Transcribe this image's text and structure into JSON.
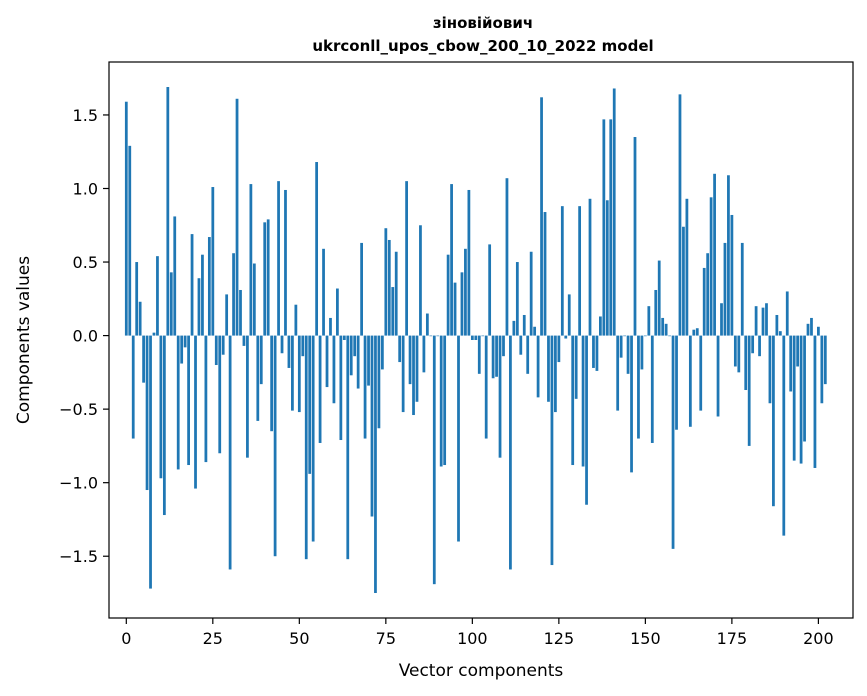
{
  "chart_data": {
    "type": "bar",
    "title_line1": "зіновійович",
    "title_line2": "ukrconll_upos_cbow_200_10_2022 model",
    "xlabel": "Vector components",
    "ylabel": "Components values",
    "xlim": [
      -5,
      210
    ],
    "ylim": [
      -1.92,
      1.86
    ],
    "x_ticks": [
      0,
      25,
      50,
      75,
      100,
      125,
      150,
      175,
      200
    ],
    "x_tick_labels": [
      "0",
      "25",
      "50",
      "75",
      "100",
      "125",
      "150",
      "175",
      "200"
    ],
    "y_ticks": [
      1.5,
      1.0,
      0.5,
      0.0,
      -0.5,
      -1.0,
      -1.5
    ],
    "y_tick_labels": [
      "1.5",
      "1.0",
      "0.5",
      "0.0",
      "−0.5",
      "−1.0",
      "−1.5"
    ],
    "bar_color": "#1f77b4",
    "grid": false,
    "values": [
      1.59,
      1.29,
      -0.7,
      0.5,
      0.23,
      -0.32,
      -1.05,
      -1.72,
      0.02,
      0.54,
      -0.97,
      -1.22,
      1.69,
      0.43,
      0.81,
      -0.91,
      -0.19,
      -0.08,
      -0.88,
      0.69,
      -1.04,
      0.39,
      0.55,
      -0.86,
      0.67,
      1.01,
      -0.2,
      -0.8,
      -0.13,
      0.28,
      -1.59,
      0.56,
      1.61,
      0.31,
      -0.07,
      -0.83,
      1.03,
      0.49,
      -0.58,
      -0.33,
      0.77,
      0.79,
      -0.65,
      -1.5,
      1.05,
      -0.12,
      0.99,
      -0.22,
      -0.51,
      0.21,
      -0.52,
      -0.14,
      -1.52,
      -0.94,
      -1.4,
      1.18,
      -0.73,
      0.59,
      -0.35,
      0.12,
      -0.46,
      0.32,
      -0.71,
      -0.03,
      -1.52,
      -0.27,
      -0.14,
      -0.36,
      0.63,
      -0.7,
      -0.34,
      -1.23,
      -1.75,
      -0.63,
      -0.23,
      0.73,
      0.65,
      0.33,
      0.57,
      -0.18,
      -0.52,
      1.05,
      -0.33,
      -0.54,
      -0.45,
      0.75,
      -0.25,
      0.15,
      0.0,
      -1.69,
      0.0,
      -0.89,
      -0.88,
      0.55,
      1.03,
      0.36,
      -1.4,
      0.43,
      0.59,
      0.99,
      -0.03,
      -0.03,
      -0.26,
      0.0,
      -0.7,
      0.62,
      -0.29,
      -0.28,
      -0.83,
      -0.14,
      1.07,
      -1.59,
      0.1,
      0.5,
      -0.13,
      0.14,
      -0.26,
      0.57,
      0.06,
      -0.42,
      1.62,
      0.84,
      -0.45,
      -1.56,
      -0.52,
      -0.18,
      0.88,
      -0.02,
      0.28,
      -0.88,
      -0.43,
      0.88,
      -0.89,
      -1.15,
      0.93,
      -0.22,
      -0.24,
      0.13,
      1.47,
      0.92,
      1.47,
      1.68,
      -0.51,
      -0.15,
      0.0,
      -0.26,
      -0.93,
      1.35,
      -0.7,
      -0.23,
      0.0,
      0.2,
      -0.73,
      0.31,
      0.51,
      0.12,
      0.08,
      0.0,
      -1.45,
      -0.64,
      1.64,
      0.74,
      0.93,
      -0.62,
      0.04,
      0.05,
      -0.51,
      0.46,
      0.56,
      0.94,
      1.1,
      -0.55,
      0.22,
      0.63,
      1.09,
      0.82,
      -0.21,
      -0.25,
      0.63,
      -0.37,
      -0.75,
      -0.12,
      0.2,
      -0.14,
      0.19,
      0.22,
      -0.46,
      -1.16,
      0.14,
      0.03,
      -1.36,
      0.3,
      -0.38,
      -0.85,
      -0.21,
      -0.87,
      -0.72,
      0.08,
      0.12,
      -0.9,
      0.06,
      -0.46,
      -0.33
    ]
  }
}
